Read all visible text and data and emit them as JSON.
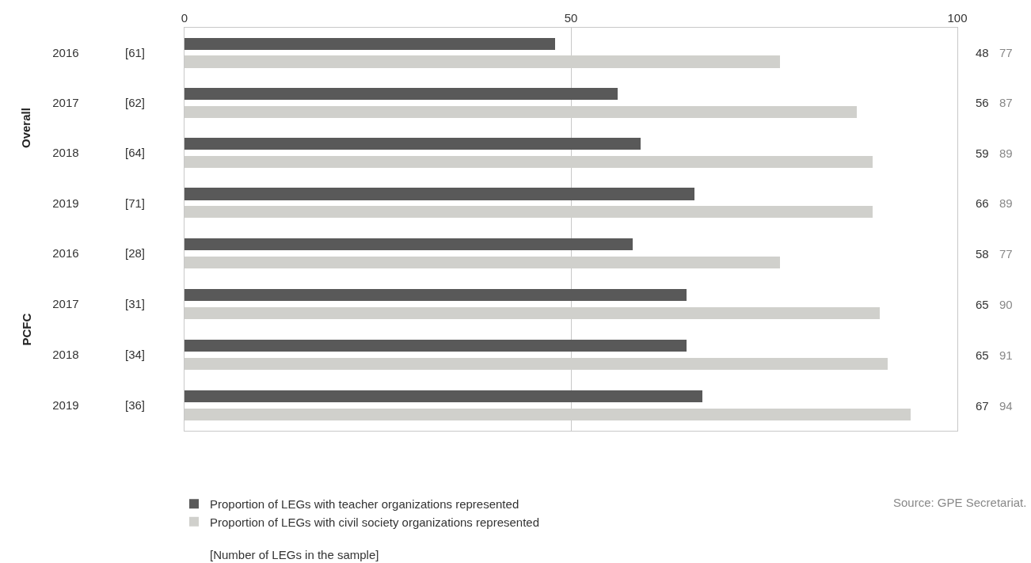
{
  "chart_data": [
    {
      "type": "bar",
      "orientation": "horizontal",
      "ylabel": "Overall",
      "categories": [
        "2016 [61]",
        "2017 [62]",
        "2018 [64]",
        "2019 [71]"
      ],
      "series": [
        {
          "color": "#595959",
          "values": [
            48,
            56,
            59,
            66
          ]
        },
        {
          "color": "#d0d0cc",
          "values": [
            77,
            87,
            89,
            89
          ]
        }
      ],
      "xlim": [
        0,
        100
      ],
      "xticks": [
        0,
        50,
        100
      ],
      "grid": "x",
      "data_labels": true
    },
    {
      "type": "bar",
      "orientation": "horizontal",
      "ylabel": "PCFC",
      "categories": [
        "2016 [28]",
        "2017 [31]",
        "2018 [34]",
        "2019 [36]"
      ],
      "series": [
        {
          "name": "Proportion of LEGs with teacher organizations represented",
          "color": "#595959",
          "values": [
            58,
            65,
            65,
            67
          ]
        },
        {
          "name": "Proportion of LEGs with civil society organizations represented",
          "color": "#d0d0cc",
          "values": [
            77,
            90,
            91,
            94
          ]
        }
      ],
      "xlim": [
        0,
        100
      ],
      "xticks": [
        0,
        50,
        100
      ],
      "grid": "x",
      "data_labels": true,
      "tick_labels": "y",
      "legend": "bottom left",
      "annotations": [
        "[Number of LEGs in the sample]",
        "Source: GPE Secretariat."
      ]
    }
  ]
}
